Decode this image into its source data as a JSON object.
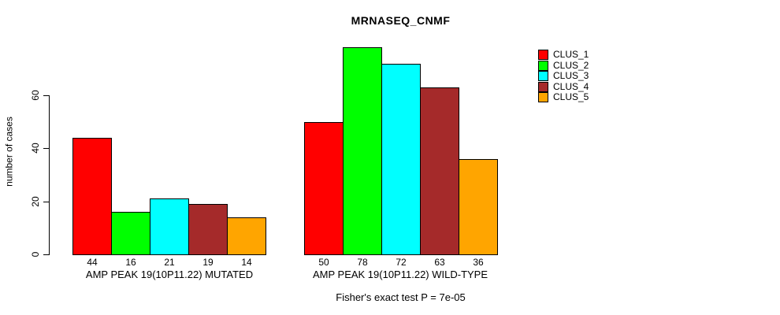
{
  "figure": {
    "background": "#ffffff",
    "text_color": "#000000"
  },
  "chart_data": {
    "type": "bar",
    "title": "MRNASEQ_CNMF",
    "ylabel": "number of cases",
    "xlabel": "",
    "categories": [
      "AMP PEAK 19(10P11.22) MUTATED",
      "AMP PEAK 19(10P11.22) WILD-TYPE"
    ],
    "series": [
      {
        "name": "CLUS_1",
        "color": "#ff0000",
        "values": [
          44,
          50
        ]
      },
      {
        "name": "CLUS_2",
        "color": "#00ff00",
        "values": [
          16,
          78
        ]
      },
      {
        "name": "CLUS_3",
        "color": "#00ffff",
        "values": [
          21,
          72
        ]
      },
      {
        "name": "CLUS_4",
        "color": "#a52a2a",
        "values": [
          19,
          63
        ]
      },
      {
        "name": "CLUS_5",
        "color": "#ffa500",
        "values": [
          14,
          36
        ]
      }
    ],
    "yticks": [
      0,
      20,
      40,
      60
    ],
    "ylim": [
      0,
      80
    ],
    "grid": false,
    "bar_value_labels_shown": true,
    "legend_position": "top-right-outside",
    "annotation": "Fisher's exact test P = 7e-05"
  }
}
